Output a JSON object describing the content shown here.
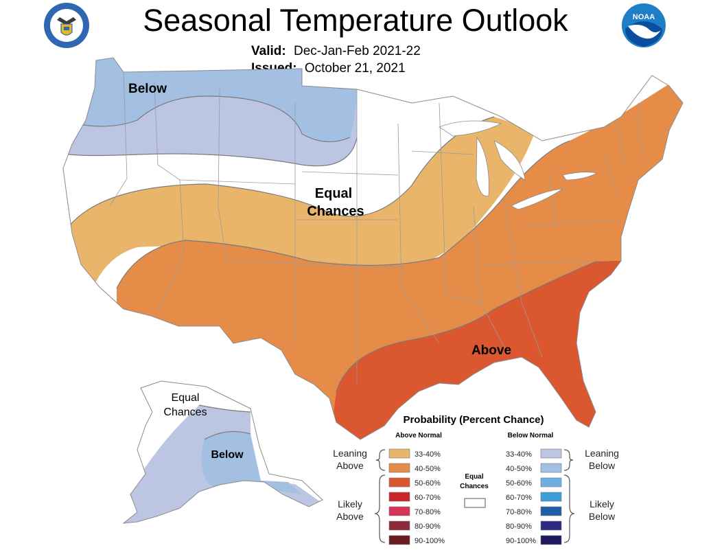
{
  "title": "Seasonal Temperature Outlook",
  "valid": {
    "label": "Valid:",
    "value": "Dec-Jan-Feb 2021-22"
  },
  "issued": {
    "label": "Issued:",
    "value": "October 21, 2021"
  },
  "map_labels": {
    "below_conus": "Below",
    "equal": "Equal",
    "chances": "Chances",
    "above": "Above",
    "ak_equal": "Equal",
    "ak_chances": "Chances",
    "ak_below": "Below"
  },
  "legend": {
    "title": "Probability (Percent Chance)",
    "above_header": "Above Normal",
    "below_header": "Below Normal",
    "equal_line1": "Equal",
    "equal_line2": "Chances",
    "leaning_above_1": "Leaning",
    "leaning_above_2": "Above",
    "likely_above_1": "Likely",
    "likely_above_2": "Above",
    "leaning_below_1": "Leaning",
    "leaning_below_2": "Below",
    "likely_below_1": "Likely",
    "likely_below_2": "Below",
    "above_bins": [
      {
        "label": "33-40%",
        "color": "#E9B56B"
      },
      {
        "label": "40-50%",
        "color": "#E58C48"
      },
      {
        "label": "50-60%",
        "color": "#DB5730"
      },
      {
        "label": "60-70%",
        "color": "#C9252B"
      },
      {
        "label": "70-80%",
        "color": "#D63358"
      },
      {
        "label": "80-90%",
        "color": "#8E2A3C"
      },
      {
        "label": "90-100%",
        "color": "#6B1A22"
      }
    ],
    "below_bins": [
      {
        "label": "33-40%",
        "color": "#BCC6E3"
      },
      {
        "label": "40-50%",
        "color": "#A3BFE2"
      },
      {
        "label": "50-60%",
        "color": "#6FAEE2"
      },
      {
        "label": "60-70%",
        "color": "#3E9ED9"
      },
      {
        "label": "70-80%",
        "color": "#1F5FA8"
      },
      {
        "label": "80-90%",
        "color": "#2C2A84"
      },
      {
        "label": "90-100%",
        "color": "#1E1A5C"
      }
    ]
  },
  "colors": {
    "leaning_below": "#BCC6E3",
    "below_40_50": "#A3BFE2",
    "equal_chances": "#FFFFFF",
    "leaning_above": "#E9B56B",
    "above_40_50": "#E58C48",
    "above_50_60": "#DB5730",
    "noaa_blue": "#1E7FC6",
    "doc_blue": "#2F67B2"
  }
}
